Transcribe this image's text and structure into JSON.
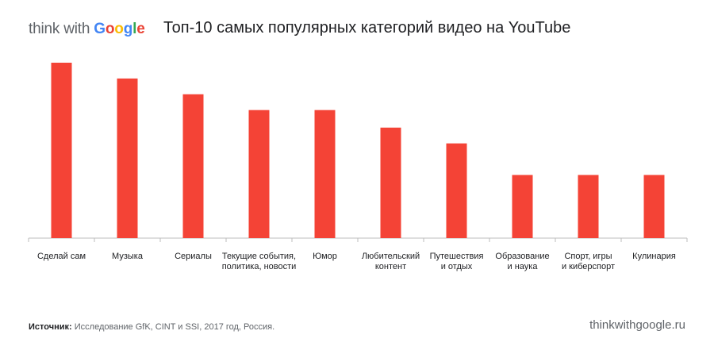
{
  "logo": {
    "prefix": "think with ",
    "letters": [
      {
        "ch": "G",
        "color": "#4285F4"
      },
      {
        "ch": "o",
        "color": "#EA4335"
      },
      {
        "ch": "o",
        "color": "#FBBC05"
      },
      {
        "ch": "g",
        "color": "#4285F4"
      },
      {
        "ch": "l",
        "color": "#34A853"
      },
      {
        "ch": "e",
        "color": "#EA4335"
      }
    ]
  },
  "header": {
    "title": "Топ-10 самых популярных категорий видео на YouTube"
  },
  "footer": {
    "source_label": "Источник:",
    "source_text": "Исследование GfK, CINT и SSI, 2017 год, Россия.",
    "site": "thinkwithgoogle.ru"
  },
  "chart_data": {
    "type": "bar",
    "title": "Топ-10 самых популярных категорий видео на YouTube",
    "categories": [
      [
        "Сделай сам"
      ],
      [
        "Музыка"
      ],
      [
        "Сериалы"
      ],
      [
        "Текущие события,",
        "политика, новости"
      ],
      [
        "Юмор"
      ],
      [
        "Любительский",
        "контент"
      ],
      [
        "Путешествия",
        "и отдых"
      ],
      [
        "Образование",
        "и наука"
      ],
      [
        "Спорт, игры",
        "и киберспорт"
      ],
      [
        "Кулинария"
      ]
    ],
    "values": [
      100,
      91,
      82,
      73,
      73,
      63,
      54,
      36,
      36,
      36
    ],
    "ylim": [
      0,
      100
    ],
    "bar_color": "#F44336",
    "axis_color": "#BDBDBD",
    "grid": false
  }
}
